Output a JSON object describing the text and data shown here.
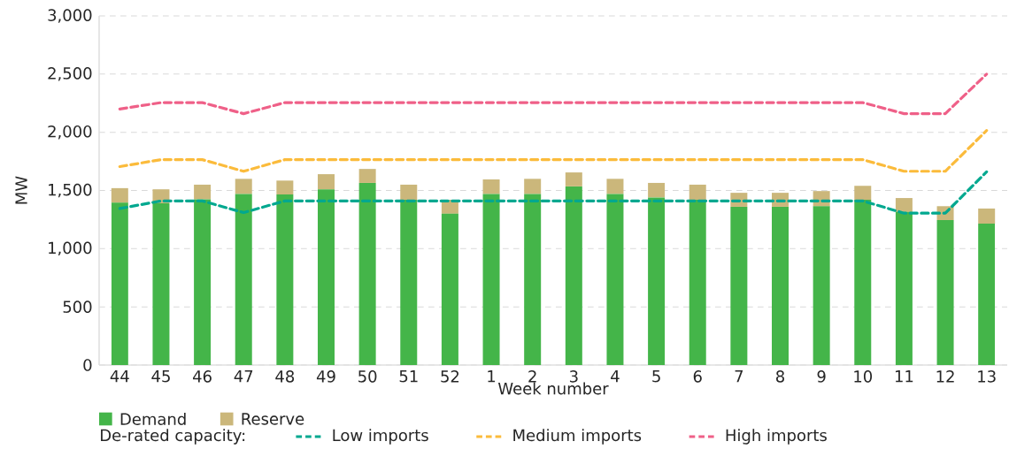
{
  "chart_data": {
    "type": "bar",
    "stacked": true,
    "xlabel": "Week number",
    "ylabel": "MW",
    "categories": [
      "44",
      "45",
      "46",
      "47",
      "48",
      "49",
      "50",
      "51",
      "52",
      "1",
      "2",
      "3",
      "4",
      "5",
      "6",
      "7",
      "8",
      "9",
      "10",
      "11",
      "12",
      "13"
    ],
    "ylim": [
      0,
      3000
    ],
    "yticks": [
      0,
      500,
      {
        "value": 1000,
        "label": "1,000"
      },
      {
        "value": 1500,
        "label": "1,500"
      },
      {
        "value": 2000,
        "label": "2,000"
      },
      {
        "value": 2500,
        "label": "2,500"
      },
      {
        "value": 3000,
        "label": "3,000"
      }
    ],
    "grid": "y",
    "legend": "bottom",
    "legend_title": "De-rated capacity:",
    "line_style": "dashed",
    "series": [
      {
        "name": "Demand",
        "color": "#44b549",
        "values": [
          1395,
          1390,
          1425,
          1470,
          1465,
          1510,
          1565,
          1420,
          1300,
          1470,
          1470,
          1535,
          1470,
          1440,
          1420,
          1360,
          1360,
          1365,
          1420,
          1315,
          1245,
          1215
        ]
      },
      {
        "name": "Reserve",
        "color": "#cbb77b",
        "values": [
          125,
          120,
          125,
          130,
          120,
          130,
          120,
          130,
          120,
          125,
          130,
          120,
          130,
          125,
          130,
          120,
          120,
          130,
          120,
          120,
          120,
          130
        ]
      },
      {
        "name": "Low imports",
        "type": "line",
        "color": "#00a88f",
        "values": [
          1345,
          1410,
          1410,
          1310,
          1410,
          1410,
          1410,
          1410,
          1410,
          1410,
          1410,
          1410,
          1410,
          1410,
          1410,
          1410,
          1410,
          1410,
          1410,
          1305,
          1305,
          1660
        ]
      },
      {
        "name": "Medium imports",
        "type": "line",
        "color": "#fbbb3b",
        "values": [
          1705,
          1765,
          1765,
          1665,
          1765,
          1765,
          1765,
          1765,
          1765,
          1765,
          1765,
          1765,
          1765,
          1765,
          1765,
          1765,
          1765,
          1765,
          1765,
          1665,
          1665,
          2015
        ]
      },
      {
        "name": "High imports",
        "type": "line",
        "color": "#ef6088",
        "values": [
          2200,
          2255,
          2255,
          2160,
          2255,
          2255,
          2255,
          2255,
          2255,
          2255,
          2255,
          2255,
          2255,
          2255,
          2255,
          2255,
          2255,
          2255,
          2255,
          2160,
          2160,
          2500
        ]
      }
    ]
  }
}
